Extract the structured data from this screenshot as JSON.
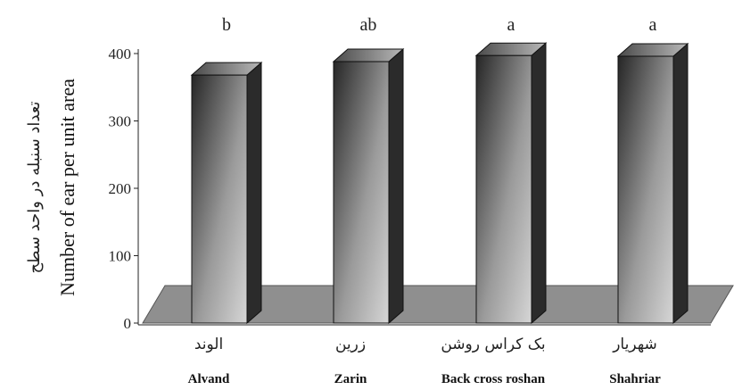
{
  "chart_data": {
    "type": "bar",
    "categories": [
      "Alvand",
      "Zarin",
      "Back cross roshan",
      "Shahriar"
    ],
    "categories_fa": [
      "الوند",
      "زرین",
      "بک کراس روشن",
      "شهریار"
    ],
    "values": [
      368,
      388,
      397,
      396
    ],
    "significance": [
      "b",
      "ab",
      "a",
      "a"
    ],
    "ylabel": "Number of ear per unit area",
    "ylabel_fa": "تعداد سنبله در واحد سطح",
    "ylim": [
      0,
      400
    ],
    "yticks": [
      0,
      100,
      200,
      300,
      400
    ],
    "grid": false,
    "legend": "none",
    "colors": {
      "bar_light": "#d6d6d6",
      "bar_dark": "#262626",
      "floor": "#8f8f8f"
    }
  }
}
